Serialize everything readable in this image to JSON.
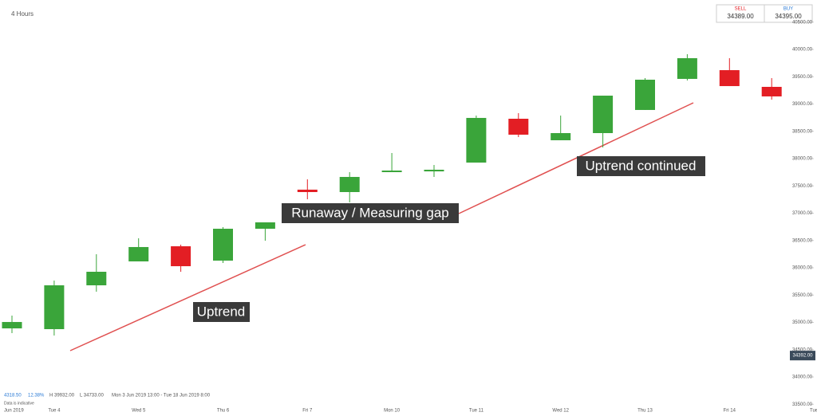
{
  "chart_data": {
    "type": "candlestick",
    "timeframe": "4 Hours",
    "categories": [
      null,
      "Tue 4",
      null,
      "Wed 5",
      null,
      "Thu 6",
      null,
      "Fri 7",
      null,
      "Mon 10",
      null,
      "Tue 11",
      null,
      "Wed 12",
      null,
      "Thu 13",
      null,
      "Fri 14",
      null,
      "Tue"
    ],
    "open": [
      34890,
      34876,
      35679,
      36117,
      36394,
      36131,
      36715,
      37431,
      37387,
      37752,
      37766,
      37927,
      38730,
      38336,
      38467,
      38891,
      39460,
      39620,
      39314,
      null
    ],
    "high": [
      35124,
      35766,
      36248,
      36540,
      36423,
      36745,
      36832,
      37620,
      37752,
      38102,
      37883,
      38788,
      38832,
      38788,
      39153,
      39474,
      39912,
      39839,
      39474,
      null
    ],
    "low": [
      34803,
      34759,
      35562,
      36117,
      35927,
      36088,
      36496,
      37255,
      37197,
      37752,
      37664,
      37927,
      38394,
      38336,
      38204,
      38891,
      39431,
      39328,
      39080,
      null
    ],
    "close": [
      35007,
      35679,
      35927,
      36380,
      36029,
      36715,
      36832,
      37387,
      37664,
      37781,
      37796,
      38745,
      38438,
      38467,
      39153,
      39445,
      39839,
      39328,
      39139,
      null
    ],
    "up_color": "#3aa53a",
    "down_color": "#e31e24",
    "ylim": [
      33460,
      40905
    ],
    "yticks": [
      {
        "value": 33500,
        "label": "33500.00"
      },
      {
        "value": 34000,
        "label": "34000.00"
      },
      {
        "value": 34500,
        "label": "34500.00"
      },
      {
        "value": 35000,
        "label": "35000.00"
      },
      {
        "value": 35500,
        "label": "35500.00"
      },
      {
        "value": 36000,
        "label": "36000.00"
      },
      {
        "value": 36500,
        "label": "36500.00"
      },
      {
        "value": 37000,
        "label": "37000.00"
      },
      {
        "value": 37500,
        "label": "37500.00"
      },
      {
        "value": 38000,
        "label": "38000.00"
      },
      {
        "value": 38500,
        "label": "38500.00"
      },
      {
        "value": 39000,
        "label": "39000.00"
      },
      {
        "value": 39500,
        "label": "39500.00"
      },
      {
        "value": 40000,
        "label": "40000.00"
      },
      {
        "value": 40500,
        "label": "40500.00"
      }
    ],
    "last_price": {
      "value": 34392,
      "label": "34392.00"
    },
    "quote": {
      "sell_label": "SELL",
      "sell": "34389.00",
      "buy_label": "BUY",
      "buy": "34395.00"
    },
    "annotations": [
      "Uptrend",
      "Runaway / Measuring gap",
      "Uptrend continued"
    ],
    "footer": {
      "change": "4318.50",
      "change_pct": "12.38%",
      "high": "H 39932.00",
      "low": "L 34733.00",
      "range": "Mon 3 Jun 2019 13:00 - Tue 18 Jun 2019 8:00",
      "note": "Data is indicative",
      "period": "Jun 2019"
    }
  }
}
